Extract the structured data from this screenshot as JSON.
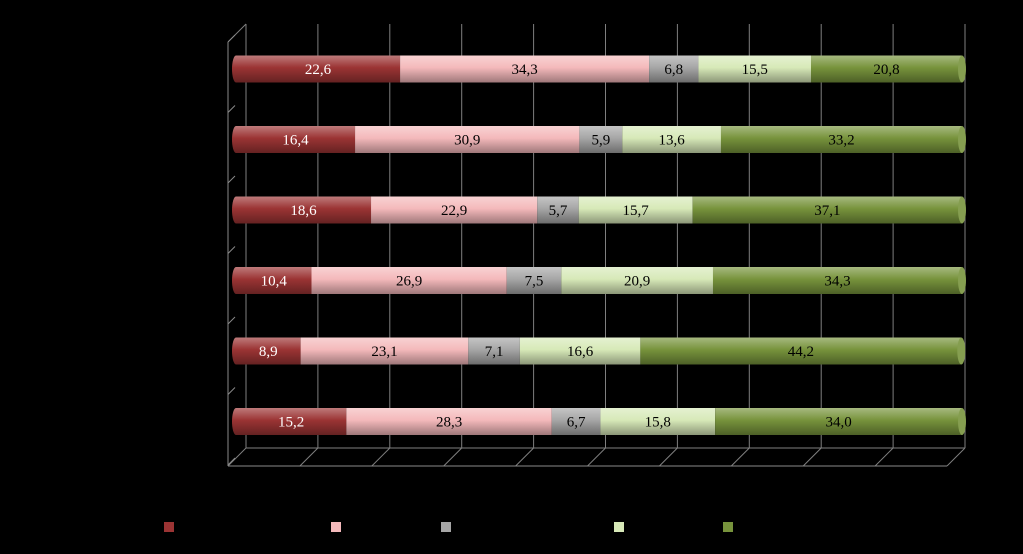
{
  "chart_data": {
    "type": "bar",
    "orientation": "horizontal",
    "stacked": true,
    "percent": true,
    "background": "#000000",
    "grid": true,
    "legend_position": "bottom",
    "xlim": [
      0,
      100
    ],
    "categories": [
      "",
      "",
      "",
      "",
      "",
      ""
    ],
    "series": [
      {
        "color": "#9B3434",
        "values": [
          22.6,
          16.4,
          18.6,
          10.4,
          8.9,
          15.2
        ],
        "labels": [
          "22,6",
          "16,4",
          "18,6",
          "10,4",
          "8,9",
          "15,2"
        ]
      },
      {
        "color": "#F4B9BB",
        "values": [
          34.3,
          30.9,
          22.9,
          26.9,
          23.1,
          28.3
        ],
        "labels": [
          "34,3",
          "30,9",
          "22,9",
          "26,9",
          "23,1",
          "28,3"
        ]
      },
      {
        "color": "#A6A6A6",
        "values": [
          6.8,
          5.9,
          5.7,
          7.5,
          7.1,
          6.7
        ],
        "labels": [
          "6,8",
          "5,9",
          "5,7",
          "7,5",
          "7,1",
          "6,7"
        ]
      },
      {
        "color": "#D7E9B8",
        "values": [
          15.5,
          13.6,
          15.7,
          20.9,
          16.6,
          15.8
        ],
        "labels": [
          "15,5",
          "13,6",
          "15,7",
          "20,9",
          "16,6",
          "15,8"
        ]
      },
      {
        "color": "#77933C",
        "values": [
          20.8,
          33.2,
          37.1,
          34.3,
          44.2,
          34.0
        ],
        "labels": [
          "20,8",
          "33,2",
          "37,1",
          "34,3",
          "44,2",
          "34,0"
        ]
      }
    ]
  }
}
